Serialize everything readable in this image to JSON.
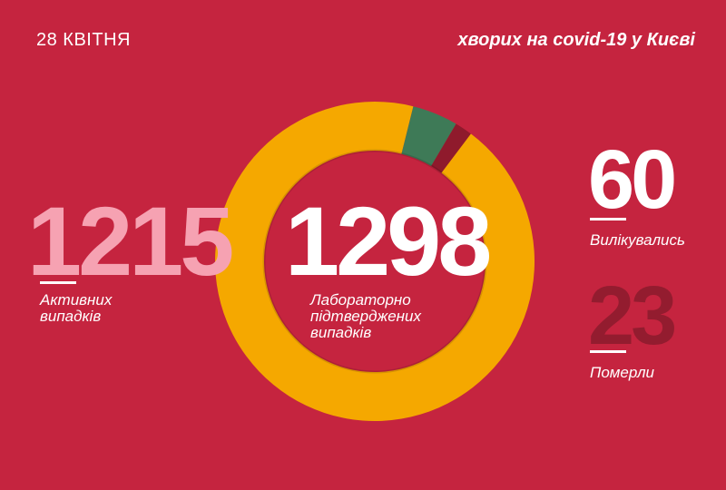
{
  "header": {
    "date": "28 КВІТНЯ",
    "title": "хворих на covid-19 у Києві"
  },
  "stats": {
    "active": {
      "value": "1215",
      "label_line1": "Активних",
      "label_line2": "випадків"
    },
    "confirmed": {
      "value": "1298",
      "label_line1": "Лабораторно",
      "label_line2": "підтверджених",
      "label_line3": "випадків"
    },
    "recovered": {
      "value": "60",
      "label": "Вилікувались"
    },
    "deaths": {
      "value": "23",
      "label": "Померли"
    }
  },
  "chart_data": {
    "type": "pie",
    "categories": [
      "Активних випадків",
      "Вилікувались",
      "Померли"
    ],
    "values": [
      1215,
      60,
      23
    ],
    "total": 1298,
    "colors": [
      "#f5a800",
      "#3e7a57",
      "#8f1a2c"
    ]
  },
  "colors": {
    "background": "#c5243f",
    "active_number": "#f6a2b2",
    "deaths_number": "#931c2f",
    "white": "#ffffff"
  }
}
